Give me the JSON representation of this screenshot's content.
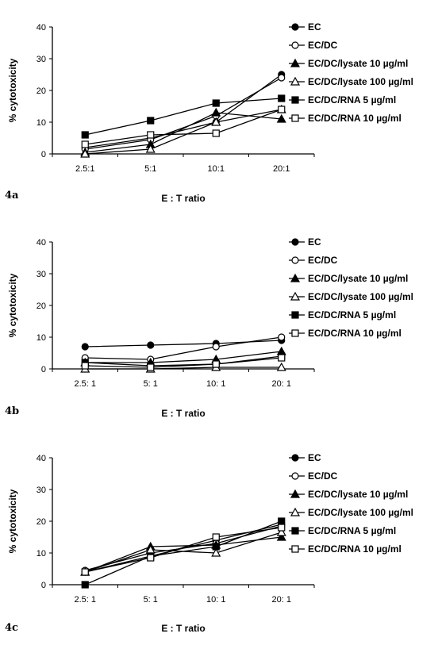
{
  "chart_data": [
    {
      "type": "line",
      "panel_label": "4a",
      "xlabel": "E : T ratio",
      "ylabel": "% cytotoxicity",
      "categories": [
        "2.5:1",
        "5:1",
        "10:1",
        "20:1"
      ],
      "ylim": [
        0,
        40
      ],
      "yticks": [
        0,
        10,
        20,
        30,
        40
      ],
      "legend_position": "right",
      "series": [
        {
          "name": "EC",
          "marker": "circle-filled",
          "values": [
            2,
            5,
            10,
            25
          ]
        },
        {
          "name": "EC/DC",
          "marker": "circle-open",
          "values": [
            1.5,
            4.5,
            12,
            24
          ]
        },
        {
          "name": "EC/DC/lysate 10 µg/ml",
          "marker": "triangle-filled",
          "values": [
            0.5,
            3,
            13,
            11
          ]
        },
        {
          "name": "EC/DC/lysate 100 µg/ml",
          "marker": "triangle-open",
          "values": [
            0,
            1.5,
            10,
            14
          ]
        },
        {
          "name": "EC/DC/RNA 5 µg/ml",
          "marker": "square-filled",
          "values": [
            6,
            10.5,
            16,
            17.5
          ]
        },
        {
          "name": "EC/DC/RNA 10 µg/ml",
          "marker": "square-open",
          "values": [
            3,
            6,
            6.5,
            14
          ]
        }
      ]
    },
    {
      "type": "line",
      "panel_label": "4b",
      "xlabel": "E : T ratio",
      "ylabel": "% cytotoxicity",
      "categories": [
        "2.5: 1",
        "5: 1",
        "10: 1",
        "20: 1"
      ],
      "ylim": [
        0,
        40
      ],
      "yticks": [
        0,
        10,
        20,
        30,
        40
      ],
      "legend_position": "right",
      "series": [
        {
          "name": "EC",
          "marker": "circle-filled",
          "values": [
            7,
            7.5,
            8,
            9
          ]
        },
        {
          "name": "EC/DC",
          "marker": "circle-open",
          "values": [
            3.5,
            3,
            7,
            10
          ]
        },
        {
          "name": "EC/DC/lysate 10 µg/ml",
          "marker": "triangle-filled",
          "values": [
            2,
            2,
            3,
            5.5
          ]
        },
        {
          "name": "EC/DC/lysate 100 µg/ml",
          "marker": "triangle-open",
          "values": [
            0,
            0,
            0.5,
            0.5
          ]
        },
        {
          "name": "EC/DC/RNA 5 µg/ml",
          "marker": "square-filled",
          "values": [
            2,
            1,
            1.5,
            4
          ]
        },
        {
          "name": "EC/DC/RNA 10 µg/ml",
          "marker": "square-open",
          "values": [
            1,
            0.5,
            1.5,
            3.5
          ]
        }
      ]
    },
    {
      "type": "line",
      "panel_label": "4c",
      "xlabel": "E : T ratio",
      "ylabel": "% cytotoxicity",
      "categories": [
        "2.5: 1",
        "5: 1",
        "10: 1",
        "20: 1"
      ],
      "ylim": [
        0,
        40
      ],
      "yticks": [
        0,
        10,
        20,
        30,
        40
      ],
      "legend_position": "right",
      "series": [
        {
          "name": "EC",
          "marker": "circle-filled",
          "values": [
            4,
            9,
            14,
            19
          ]
        },
        {
          "name": "EC/DC",
          "marker": "circle-open",
          "values": [
            4.5,
            10,
            13,
            18.5
          ]
        },
        {
          "name": "EC/DC/lysate 10 µg/ml",
          "marker": "triangle-filled",
          "values": [
            4,
            12,
            12.5,
            15
          ]
        },
        {
          "name": "EC/DC/lysate 100 µg/ml",
          "marker": "triangle-open",
          "values": [
            4,
            11,
            10,
            16.5
          ]
        },
        {
          "name": "EC/DC/RNA 5 µg/ml",
          "marker": "square-filled",
          "values": [
            0,
            9,
            12,
            20
          ]
        },
        {
          "name": "EC/DC/RNA 10 µg/ml",
          "marker": "square-open",
          "values": [
            4,
            8.5,
            15,
            18
          ]
        }
      ]
    }
  ]
}
